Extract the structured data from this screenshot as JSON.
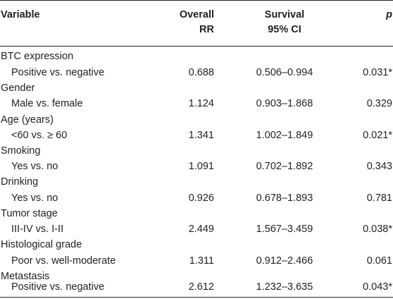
{
  "headers": {
    "variable": "Variable",
    "overall_line1": "Overall",
    "overall_line2": "RR",
    "survival_line1": "Survival",
    "survival_line2": "95% CI",
    "p": "p"
  },
  "groups": [
    {
      "label": "BTC expression",
      "comparison": "Positive vs. negative",
      "rr": "0.688",
      "ci": "0.506–0.994",
      "p": "0.031*"
    },
    {
      "label": "Gender",
      "comparison": "Male vs. female",
      "rr": "1.124",
      "ci": "0.903–1.868",
      "p": "0.329"
    },
    {
      "label": "Age (years)",
      "comparison": "<60 vs. ≥ 60",
      "rr": "1.341",
      "ci": "1.002–1.849",
      "p": "0.021*"
    },
    {
      "label": "Smoking",
      "comparison": "Yes vs. no",
      "rr": "1.091",
      "ci": "0.702–1.892",
      "p": "0.343"
    },
    {
      "label": "Drinking",
      "comparison": "Yes vs. no",
      "rr": "0.926",
      "ci": "0.678–1.893",
      "p": "0.781"
    },
    {
      "label": "Tumor stage",
      "comparison": "III-IV vs. I-II",
      "rr": "2.449",
      "ci": "1.567–3.459",
      "p": "0.038*"
    },
    {
      "label": "Histological grade",
      "comparison": "Poor vs. well-moderate",
      "rr": "1.311",
      "ci": "0.912–2.466",
      "p": "0.061"
    },
    {
      "label": "Metastasis",
      "comparison": "Positive vs. negative",
      "rr": "2.612",
      "ci": "1.232–3.635",
      "p": "0.043*"
    }
  ]
}
